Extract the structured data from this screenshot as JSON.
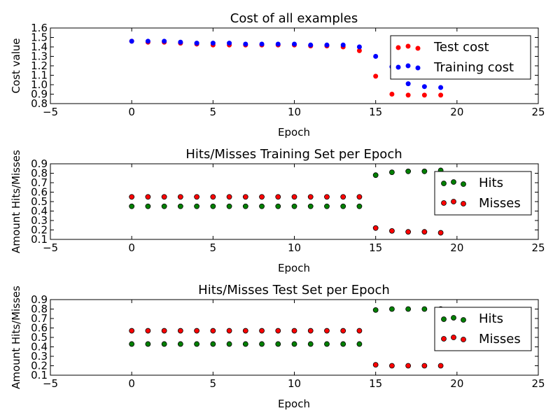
{
  "chart_data": [
    {
      "type": "scatter",
      "title": "Cost of all examples",
      "xlabel": "Epoch",
      "ylabel": "Cost value",
      "xlim": [
        -5,
        25
      ],
      "ylim": [
        0.8,
        1.6
      ],
      "xticks": [
        "−5",
        "0",
        "5",
        "10",
        "15",
        "20",
        "25"
      ],
      "yticks": [
        "0.8",
        "0.9",
        "1.0",
        "1.1",
        "1.2",
        "1.3",
        "1.4",
        "1.5",
        "1.6"
      ],
      "legend_position": "top-right",
      "series": [
        {
          "name": "Test cost",
          "color": "#ff0000",
          "x": [
            0,
            1,
            2,
            3,
            4,
            5,
            6,
            7,
            8,
            9,
            10,
            11,
            12,
            13,
            14,
            15,
            16,
            17,
            18,
            19
          ],
          "y": [
            1.46,
            1.45,
            1.45,
            1.44,
            1.43,
            1.42,
            1.42,
            1.42,
            1.42,
            1.42,
            1.42,
            1.41,
            1.41,
            1.4,
            1.36,
            1.09,
            0.9,
            0.89,
            0.89,
            0.89
          ]
        },
        {
          "name": "Training cost",
          "color": "#0000ff",
          "x": [
            0,
            1,
            2,
            3,
            4,
            5,
            6,
            7,
            8,
            9,
            10,
            11,
            12,
            13,
            14,
            15,
            16,
            17,
            18,
            19
          ],
          "y": [
            1.46,
            1.46,
            1.46,
            1.45,
            1.44,
            1.44,
            1.44,
            1.43,
            1.43,
            1.43,
            1.43,
            1.42,
            1.42,
            1.42,
            1.4,
            1.3,
            1.19,
            1.01,
            0.98,
            0.97
          ]
        }
      ]
    },
    {
      "type": "scatter",
      "title": "Hits/Misses Training Set per Epoch",
      "xlabel": "Epoch",
      "ylabel": "Amount Hits/Misses",
      "xlim": [
        -5,
        25
      ],
      "ylim": [
        0.1,
        0.9
      ],
      "xticks": [
        "−5",
        "0",
        "5",
        "10",
        "15",
        "20",
        "25"
      ],
      "yticks": [
        "0.1",
        "0.2",
        "0.3",
        "0.4",
        "0.5",
        "0.6",
        "0.7",
        "0.8",
        "0.9"
      ],
      "legend_position": "center-right",
      "series": [
        {
          "name": "Hits",
          "color": "#008000",
          "x": [
            0,
            1,
            2,
            3,
            4,
            5,
            6,
            7,
            8,
            9,
            10,
            11,
            12,
            13,
            14,
            15,
            16,
            17,
            18,
            19
          ],
          "y": [
            0.45,
            0.45,
            0.45,
            0.45,
            0.45,
            0.45,
            0.45,
            0.45,
            0.45,
            0.45,
            0.45,
            0.45,
            0.45,
            0.45,
            0.45,
            0.78,
            0.81,
            0.82,
            0.82,
            0.83
          ]
        },
        {
          "name": "Misses",
          "color": "#ff0000",
          "x": [
            0,
            1,
            2,
            3,
            4,
            5,
            6,
            7,
            8,
            9,
            10,
            11,
            12,
            13,
            14,
            15,
            16,
            17,
            18,
            19
          ],
          "y": [
            0.55,
            0.55,
            0.55,
            0.55,
            0.55,
            0.55,
            0.55,
            0.55,
            0.55,
            0.55,
            0.55,
            0.55,
            0.55,
            0.55,
            0.55,
            0.22,
            0.19,
            0.18,
            0.18,
            0.17
          ]
        }
      ]
    },
    {
      "type": "scatter",
      "title": "Hits/Misses Test Set per Epoch",
      "xlabel": "Epoch",
      "ylabel": "Amount Hits/Misses",
      "xlim": [
        -5,
        25
      ],
      "ylim": [
        0.1,
        0.9
      ],
      "xticks": [
        "−5",
        "0",
        "5",
        "10",
        "15",
        "20",
        "25"
      ],
      "yticks": [
        "0.1",
        "0.2",
        "0.3",
        "0.4",
        "0.5",
        "0.6",
        "0.7",
        "0.8",
        "0.9"
      ],
      "legend_position": "center-right",
      "series": [
        {
          "name": "Hits",
          "color": "#008000",
          "x": [
            0,
            1,
            2,
            3,
            4,
            5,
            6,
            7,
            8,
            9,
            10,
            11,
            12,
            13,
            14,
            15,
            16,
            17,
            18,
            19
          ],
          "y": [
            0.43,
            0.43,
            0.43,
            0.43,
            0.43,
            0.43,
            0.43,
            0.43,
            0.43,
            0.43,
            0.43,
            0.43,
            0.43,
            0.43,
            0.43,
            0.79,
            0.8,
            0.8,
            0.8,
            0.8
          ]
        },
        {
          "name": "Misses",
          "color": "#ff0000",
          "x": [
            0,
            1,
            2,
            3,
            4,
            5,
            6,
            7,
            8,
            9,
            10,
            11,
            12,
            13,
            14,
            15,
            16,
            17,
            18,
            19
          ],
          "y": [
            0.57,
            0.57,
            0.57,
            0.57,
            0.57,
            0.57,
            0.57,
            0.57,
            0.57,
            0.57,
            0.57,
            0.57,
            0.57,
            0.57,
            0.57,
            0.21,
            0.2,
            0.2,
            0.2,
            0.2
          ]
        }
      ]
    }
  ]
}
